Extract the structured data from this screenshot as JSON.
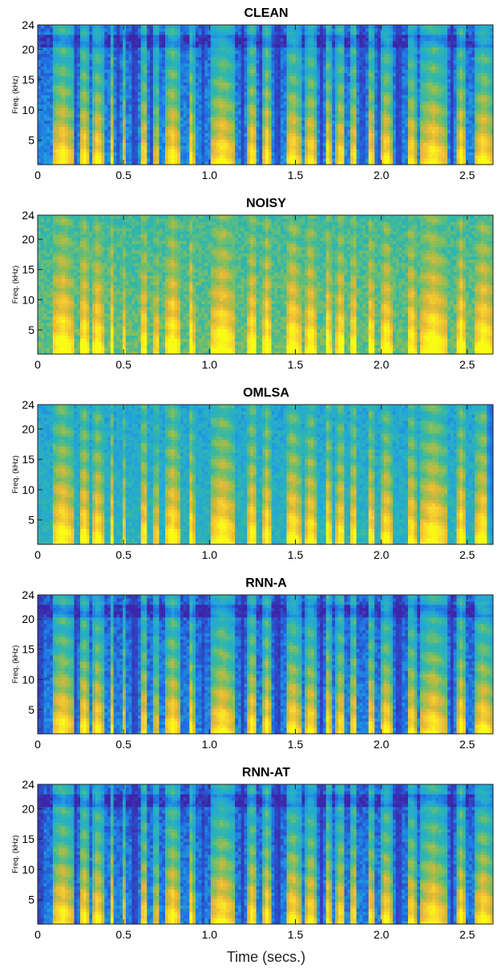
{
  "figure": {
    "xlabel": "Time (secs.)"
  },
  "chart_data": [
    {
      "type": "heatmap",
      "title": "CLEAN",
      "ylabel": "Freq. (kHz)",
      "xlim": [
        0,
        2.65
      ],
      "ylim": [
        1,
        24
      ],
      "xticks": [
        0,
        0.5,
        1.0,
        1.5,
        2.0,
        2.5
      ],
      "xtick_labels": [
        "0",
        "0.5",
        "1.0",
        "1.5",
        "2.0",
        "2.5"
      ],
      "yticks": [
        5,
        10,
        15,
        20,
        24
      ],
      "ytick_labels": [
        "5",
        "10",
        "15",
        "20",
        "24"
      ],
      "colormap": [
        "#3d26a8",
        "#1f70e3",
        "#22a5db",
        "#32b8a8",
        "#8bbf56",
        "#e4b737",
        "#f9d52e",
        "#f9fb15"
      ],
      "noise_floor": 0.22,
      "speech_segments": [
        [
          0.08,
          0.21
        ],
        [
          0.24,
          0.3
        ],
        [
          0.32,
          0.38
        ],
        [
          0.42,
          0.44
        ],
        [
          0.5,
          0.52
        ],
        [
          0.6,
          0.64
        ],
        [
          0.68,
          0.7
        ],
        [
          0.74,
          0.83
        ],
        [
          0.88,
          0.91
        ],
        [
          1.0,
          1.15
        ],
        [
          1.22,
          1.28
        ],
        [
          1.31,
          1.36
        ],
        [
          1.44,
          1.53
        ],
        [
          1.56,
          1.62
        ],
        [
          1.67,
          1.71
        ],
        [
          1.74,
          1.79
        ],
        [
          1.82,
          1.86
        ],
        [
          1.92,
          1.96
        ],
        [
          2.0,
          2.06
        ],
        [
          2.15,
          2.2
        ],
        [
          2.22,
          2.38
        ],
        [
          2.44,
          2.49
        ],
        [
          2.54,
          2.65
        ]
      ],
      "gaps": [
        [
          0.22,
          0.23
        ],
        [
          0.4,
          0.41
        ],
        [
          0.46,
          0.47
        ],
        [
          0.54,
          0.58
        ],
        [
          0.66,
          0.67
        ],
        [
          0.96,
          0.98
        ],
        [
          1.18,
          1.21
        ],
        [
          1.29,
          1.3
        ],
        [
          1.38,
          1.42
        ],
        [
          1.64,
          1.66
        ],
        [
          1.8,
          1.81
        ],
        [
          1.88,
          1.9
        ],
        [
          1.97,
          1.99
        ],
        [
          2.08,
          2.12
        ],
        [
          2.4,
          2.42
        ]
      ]
    },
    {
      "type": "heatmap",
      "title": "NOISY",
      "ylabel": "Freq. (kHz)",
      "xlim": [
        0,
        2.65
      ],
      "ylim": [
        1,
        24
      ],
      "xticks": [
        0,
        0.5,
        1.0,
        1.5,
        2.0,
        2.5
      ],
      "xtick_labels": [
        "0",
        "0.5",
        "1.0",
        "1.5",
        "2.0",
        "2.5"
      ],
      "yticks": [
        5,
        10,
        15,
        20,
        24
      ],
      "ytick_labels": [
        "5",
        "10",
        "15",
        "20",
        "24"
      ],
      "colormap": [
        "#3d26a8",
        "#1f70e3",
        "#22a5db",
        "#32b8a8",
        "#8bbf56",
        "#e4b737",
        "#f9d52e",
        "#f9fb15"
      ],
      "noise_floor": 0.52,
      "speech_segments": [
        [
          0.08,
          0.21
        ],
        [
          0.24,
          0.3
        ],
        [
          0.32,
          0.38
        ],
        [
          0.42,
          0.44
        ],
        [
          0.5,
          0.52
        ],
        [
          0.6,
          0.64
        ],
        [
          0.68,
          0.7
        ],
        [
          0.74,
          0.83
        ],
        [
          0.88,
          0.91
        ],
        [
          1.0,
          1.15
        ],
        [
          1.22,
          1.28
        ],
        [
          1.31,
          1.36
        ],
        [
          1.44,
          1.53
        ],
        [
          1.56,
          1.62
        ],
        [
          1.67,
          1.71
        ],
        [
          1.74,
          1.79
        ],
        [
          1.82,
          1.86
        ],
        [
          1.92,
          1.96
        ],
        [
          2.0,
          2.06
        ],
        [
          2.15,
          2.2
        ],
        [
          2.22,
          2.38
        ],
        [
          2.44,
          2.49
        ],
        [
          2.54,
          2.65
        ]
      ],
      "gaps": []
    },
    {
      "type": "heatmap",
      "title": "OMLSA",
      "ylabel": "Freq. (kHz)",
      "xlim": [
        0,
        2.65
      ],
      "ylim": [
        1,
        24
      ],
      "xticks": [
        0,
        0.5,
        1.0,
        1.5,
        2.0,
        2.5
      ],
      "xtick_labels": [
        "0",
        "0.5",
        "1.0",
        "1.5",
        "2.0",
        "2.5"
      ],
      "yticks": [
        5,
        10,
        15,
        20,
        24
      ],
      "ytick_labels": [
        "5",
        "10",
        "15",
        "20",
        "24"
      ],
      "colormap": [
        "#3d26a8",
        "#1f70e3",
        "#22a5db",
        "#32b8a8",
        "#8bbf56",
        "#e4b737",
        "#f9d52e",
        "#f9fb15"
      ],
      "noise_floor": 0.38,
      "speech_segments": [
        [
          0.08,
          0.21
        ],
        [
          0.24,
          0.3
        ],
        [
          0.32,
          0.38
        ],
        [
          0.42,
          0.44
        ],
        [
          0.5,
          0.52
        ],
        [
          0.6,
          0.64
        ],
        [
          0.68,
          0.7
        ],
        [
          0.74,
          0.83
        ],
        [
          0.88,
          0.91
        ],
        [
          1.0,
          1.15
        ],
        [
          1.22,
          1.28
        ],
        [
          1.31,
          1.36
        ],
        [
          1.44,
          1.53
        ],
        [
          1.56,
          1.62
        ],
        [
          1.67,
          1.71
        ],
        [
          1.74,
          1.79
        ],
        [
          1.82,
          1.86
        ],
        [
          1.92,
          1.96
        ],
        [
          2.0,
          2.06
        ],
        [
          2.15,
          2.2
        ],
        [
          2.22,
          2.38
        ],
        [
          2.44,
          2.49
        ],
        [
          2.54,
          2.65
        ]
      ],
      "gaps": [
        [
          2.62,
          2.65
        ]
      ]
    },
    {
      "type": "heatmap",
      "title": "RNN-A",
      "ylabel": "Freq. (kHz)",
      "xlim": [
        0,
        2.65
      ],
      "ylim": [
        1,
        24
      ],
      "xticks": [
        0,
        0.5,
        1.0,
        1.5,
        2.0,
        2.5
      ],
      "xtick_labels": [
        "0",
        "0.5",
        "1.0",
        "1.5",
        "2.0",
        "2.5"
      ],
      "yticks": [
        5,
        10,
        15,
        20,
        24
      ],
      "ytick_labels": [
        "5",
        "10",
        "15",
        "20",
        "24"
      ],
      "colormap": [
        "#3d26a8",
        "#1f70e3",
        "#22a5db",
        "#32b8a8",
        "#8bbf56",
        "#e4b737",
        "#f9d52e",
        "#f9fb15"
      ],
      "noise_floor": 0.2,
      "speech_segments": [
        [
          0.08,
          0.21
        ],
        [
          0.24,
          0.3
        ],
        [
          0.32,
          0.38
        ],
        [
          0.42,
          0.44
        ],
        [
          0.5,
          0.52
        ],
        [
          0.6,
          0.64
        ],
        [
          0.68,
          0.7
        ],
        [
          0.74,
          0.83
        ],
        [
          0.88,
          0.91
        ],
        [
          1.0,
          1.15
        ],
        [
          1.22,
          1.28
        ],
        [
          1.31,
          1.36
        ],
        [
          1.44,
          1.53
        ],
        [
          1.56,
          1.62
        ],
        [
          1.67,
          1.71
        ],
        [
          1.74,
          1.79
        ],
        [
          1.82,
          1.86
        ],
        [
          1.92,
          1.96
        ],
        [
          2.0,
          2.06
        ],
        [
          2.15,
          2.2
        ],
        [
          2.22,
          2.38
        ],
        [
          2.44,
          2.49
        ],
        [
          2.54,
          2.65
        ]
      ],
      "gaps": [
        [
          0.0,
          0.03
        ],
        [
          0.22,
          0.23
        ],
        [
          0.4,
          0.41
        ],
        [
          0.54,
          0.58
        ],
        [
          0.96,
          0.98
        ],
        [
          1.18,
          1.21
        ],
        [
          1.38,
          1.42
        ],
        [
          1.64,
          1.66
        ],
        [
          2.08,
          2.12
        ],
        [
          2.4,
          2.42
        ]
      ]
    },
    {
      "type": "heatmap",
      "title": "RNN-AT",
      "ylabel": "Freq. (kHz)",
      "xlim": [
        0,
        2.65
      ],
      "ylim": [
        1,
        24
      ],
      "xticks": [
        0,
        0.5,
        1.0,
        1.5,
        2.0,
        2.5
      ],
      "xtick_labels": [
        "0",
        "0.5",
        "1.0",
        "1.5",
        "2.0",
        "2.5"
      ],
      "yticks": [
        5,
        10,
        15,
        20,
        24
      ],
      "ytick_labels": [
        "5",
        "10",
        "15",
        "20",
        "24"
      ],
      "colormap": [
        "#3d26a8",
        "#1f70e3",
        "#22a5db",
        "#32b8a8",
        "#8bbf56",
        "#e4b737",
        "#f9d52e",
        "#f9fb15"
      ],
      "noise_floor": 0.2,
      "speech_segments": [
        [
          0.08,
          0.21
        ],
        [
          0.24,
          0.3
        ],
        [
          0.32,
          0.38
        ],
        [
          0.42,
          0.44
        ],
        [
          0.5,
          0.52
        ],
        [
          0.6,
          0.64
        ],
        [
          0.68,
          0.7
        ],
        [
          0.74,
          0.83
        ],
        [
          0.88,
          0.91
        ],
        [
          1.0,
          1.15
        ],
        [
          1.22,
          1.28
        ],
        [
          1.31,
          1.36
        ],
        [
          1.44,
          1.53
        ],
        [
          1.56,
          1.62
        ],
        [
          1.67,
          1.71
        ],
        [
          1.74,
          1.79
        ],
        [
          1.82,
          1.86
        ],
        [
          1.92,
          1.96
        ],
        [
          2.0,
          2.06
        ],
        [
          2.15,
          2.2
        ],
        [
          2.22,
          2.38
        ],
        [
          2.44,
          2.49
        ],
        [
          2.54,
          2.65
        ]
      ],
      "gaps": [
        [
          0.0,
          0.03
        ],
        [
          0.22,
          0.23
        ],
        [
          0.4,
          0.41
        ],
        [
          0.54,
          0.58
        ],
        [
          0.96,
          0.98
        ],
        [
          1.18,
          1.21
        ],
        [
          1.38,
          1.42
        ],
        [
          1.64,
          1.66
        ],
        [
          2.08,
          2.12
        ],
        [
          2.4,
          2.42
        ]
      ]
    }
  ]
}
